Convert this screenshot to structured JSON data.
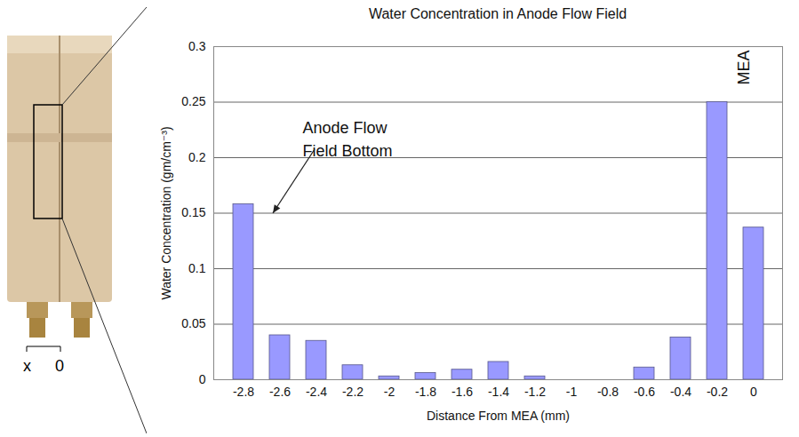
{
  "chart_data": {
    "type": "bar",
    "title": "Water Concentration in Anode Flow Field",
    "x_label": "Distance From MEA (mm)",
    "y_label": "Water Concentration (gm/cm⁻³)",
    "categories": [
      "-2.8",
      "-2.6",
      "-2.4",
      "-2.2",
      "-2",
      "-1.8",
      "-1.6",
      "-1.4",
      "-1.2",
      "-1",
      "-0.8",
      "-0.6",
      "-0.4",
      "-0.2",
      "0"
    ],
    "values": [
      0.158,
      0.04,
      0.035,
      0.013,
      0.003,
      0.006,
      0.009,
      0.016,
      0.003,
      0,
      0,
      0.011,
      0.038,
      0.25,
      0.137
    ],
    "color": "#9999ff",
    "ylim": [
      0,
      0.3
    ],
    "yticks": [
      0,
      0.05,
      0.1,
      0.15,
      0.2,
      0.25,
      0.3
    ],
    "grid": true,
    "annotations": [
      "Anode Flow Field Bottom",
      "MEA"
    ],
    "inset_axis_labels": [
      "x",
      "0"
    ]
  }
}
